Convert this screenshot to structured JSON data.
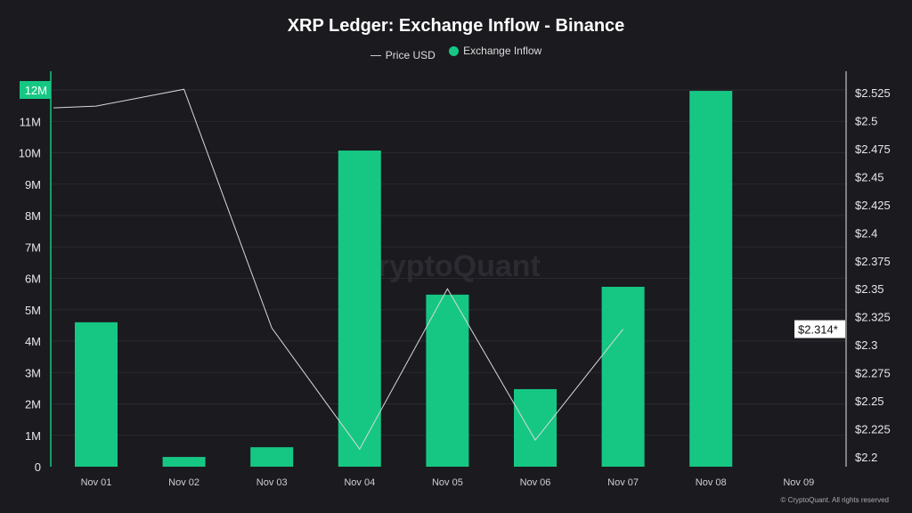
{
  "chart_data": {
    "type": "bar+line",
    "title": "XRP Ledger: Exchange Inflow - Binance",
    "categories": [
      "Nov 01",
      "Nov 02",
      "Nov 03",
      "Nov 04",
      "Nov 05",
      "Nov 06",
      "Nov 07",
      "Nov 08",
      "Nov 09"
    ],
    "series": [
      {
        "name": "Exchange Inflow",
        "type": "bar",
        "axis": "left",
        "color": "#16c784",
        "values": [
          4.6,
          0.31,
          0.62,
          10.07,
          5.48,
          2.47,
          5.73,
          11.97,
          null
        ]
      },
      {
        "name": "Price USD",
        "type": "line",
        "axis": "right",
        "color": "#d9d9d9",
        "values": [
          2.513,
          2.528,
          2.315,
          2.207,
          2.35,
          2.215,
          2.314,
          null,
          null
        ]
      }
    ],
    "left_axis": {
      "ticks": [
        "0",
        "1M",
        "2M",
        "3M",
        "4M",
        "5M",
        "6M",
        "7M",
        "8M",
        "9M",
        "10M",
        "11M",
        "12M"
      ],
      "range": [
        0,
        12
      ],
      "unit": "M",
      "highlight": "12M"
    },
    "right_axis": {
      "ticks": [
        "$2.2",
        "$2.225",
        "$2.25",
        "$2.275",
        "$2.3",
        "$2.325",
        "$2.35",
        "$2.375",
        "$2.4",
        "$2.425",
        "$2.45",
        "$2.475",
        "$2.5",
        "$2.525"
      ],
      "range": [
        2.2,
        2.525
      ],
      "current_label": "$2.314*"
    },
    "grid": true,
    "legend_position": "top-center"
  },
  "watermark": "CryptoQuant",
  "credit": "© CryptoQuant. All rights reserved"
}
